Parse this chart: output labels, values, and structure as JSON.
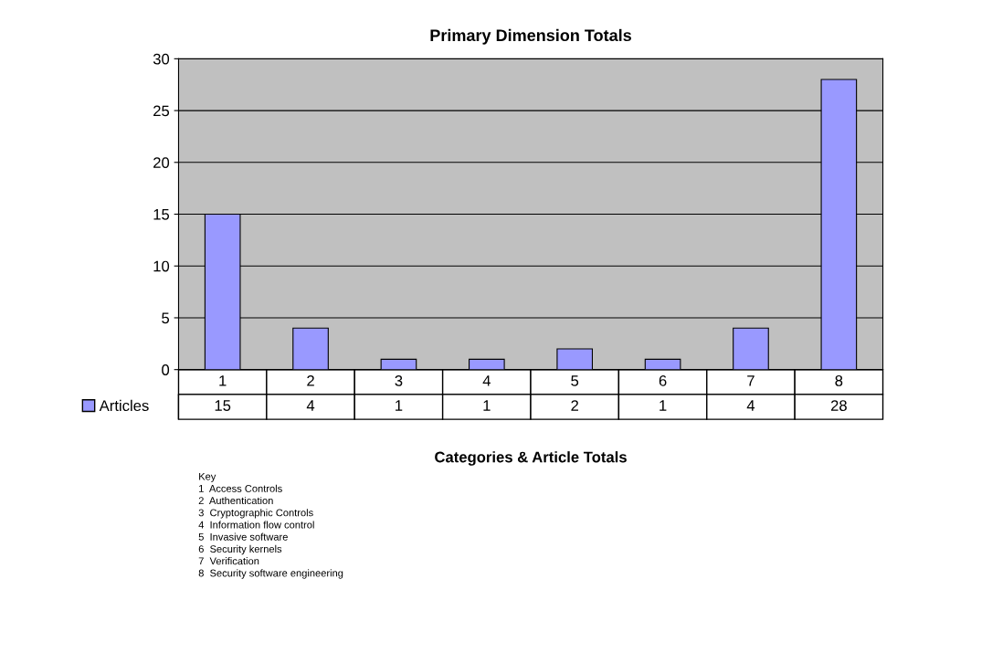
{
  "chart_data": {
    "type": "bar",
    "title": "Primary Dimension Totals",
    "xlabel": "Categories & Article Totals",
    "categories": [
      "1",
      "2",
      "3",
      "4",
      "5",
      "6",
      "7",
      "8"
    ],
    "series": [
      {
        "name": "Articles",
        "color": "#9999ff",
        "values": [
          15,
          4,
          1,
          1,
          2,
          1,
          4,
          28
        ]
      }
    ],
    "ylim": [
      0,
      30
    ],
    "yticks": [
      0,
      5,
      10,
      15,
      20,
      25,
      30
    ],
    "grid": "y",
    "data_labels": true,
    "legend": "bottom left",
    "annotations": [
      "Key",
      "1  Access Controls",
      "2  Authentication",
      "3  Cryptographic Controls",
      "4  Information flow control",
      "5  Invasive software",
      "6  Security kernels",
      "7  Verification",
      "8  Security software engineering"
    ]
  }
}
